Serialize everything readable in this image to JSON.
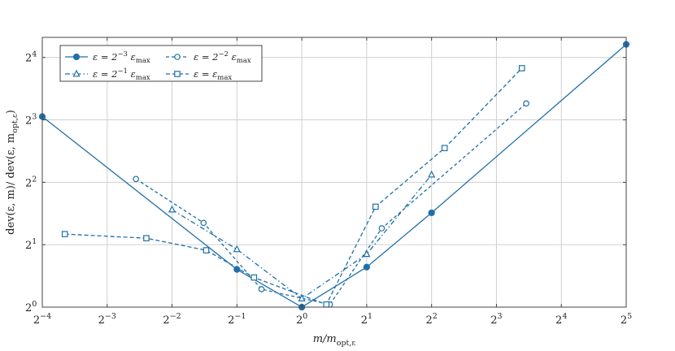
{
  "chart_data": {
    "type": "line",
    "x_scale": "log2",
    "y_scale": "log2",
    "xlim": [
      0.0625,
      32
    ],
    "ylim": [
      1,
      20
    ],
    "grid": true,
    "legend_position": "top-left",
    "legend_columns": 2,
    "xlabel_parts": {
      "base": "m/m",
      "sub": "opt,ε"
    },
    "ylabel_parts": {
      "pre": "dev(ε, m)/ dev(ε, m",
      "sub": "opt,ε",
      "post": ")"
    },
    "x_ticks": [
      {
        "base": "2",
        "exp": "−4",
        "value": 0.0625
      },
      {
        "base": "2",
        "exp": "−3",
        "value": 0.125
      },
      {
        "base": "2",
        "exp": "−2",
        "value": 0.25
      },
      {
        "base": "2",
        "exp": "−1",
        "value": 0.5
      },
      {
        "base": "2",
        "exp": "0",
        "value": 1
      },
      {
        "base": "2",
        "exp": "1",
        "value": 2
      },
      {
        "base": "2",
        "exp": "2",
        "value": 4
      },
      {
        "base": "2",
        "exp": "3",
        "value": 8
      },
      {
        "base": "2",
        "exp": "4",
        "value": 16
      },
      {
        "base": "2",
        "exp": "5",
        "value": 32
      }
    ],
    "y_ticks": [
      {
        "base": "2",
        "exp": "0",
        "value": 1
      },
      {
        "base": "2",
        "exp": "1",
        "value": 2
      },
      {
        "base": "2",
        "exp": "2",
        "value": 4
      },
      {
        "base": "2",
        "exp": "3",
        "value": 8
      },
      {
        "base": "2",
        "exp": "4",
        "value": 16
      }
    ],
    "series": [
      {
        "label": {
          "pre": "ε = 2",
          "exp": "−3",
          "mid": " ε",
          "sub": "max"
        },
        "marker": "filled-circle",
        "dash": "solid",
        "x": [
          0.0625,
          0.5,
          1,
          2,
          4,
          32
        ],
        "y": [
          8.3,
          1.52,
          1.0,
          1.56,
          2.85,
          18.5
        ]
      },
      {
        "label": {
          "pre": "ε = 2",
          "exp": "−2",
          "mid": " ε",
          "sub": "max"
        },
        "marker": "open-circle",
        "dash": "dashed-short",
        "x": [
          0.17,
          0.35,
          0.65,
          1.35,
          2.35,
          11.0
        ],
        "y": [
          4.15,
          2.55,
          1.22,
          1.03,
          2.4,
          9.6
        ]
      },
      {
        "label": {
          "pre": "ε = 2",
          "exp": "−1",
          "mid": " ε",
          "sub": "max"
        },
        "marker": "open-triangle",
        "dash": "dash-dot",
        "x": [
          0.25,
          0.5,
          1,
          2,
          4
        ],
        "y": [
          2.95,
          1.9,
          1.1,
          1.8,
          4.35
        ]
      },
      {
        "label": {
          "pre": "ε = ε",
          "exp": "",
          "mid": "",
          "sub": "max"
        },
        "marker": "open-square",
        "dash": "dashed",
        "x": [
          0.0795,
          0.19,
          0.36,
          0.6,
          1.3,
          2.2,
          4.6,
          10.5
        ],
        "y": [
          2.25,
          2.15,
          1.88,
          1.39,
          1.03,
          3.05,
          5.85,
          14.2
        ]
      }
    ]
  },
  "colors": {
    "series": "#1f6fa8",
    "grid": "#d0d0d0",
    "frame": "#444444"
  }
}
